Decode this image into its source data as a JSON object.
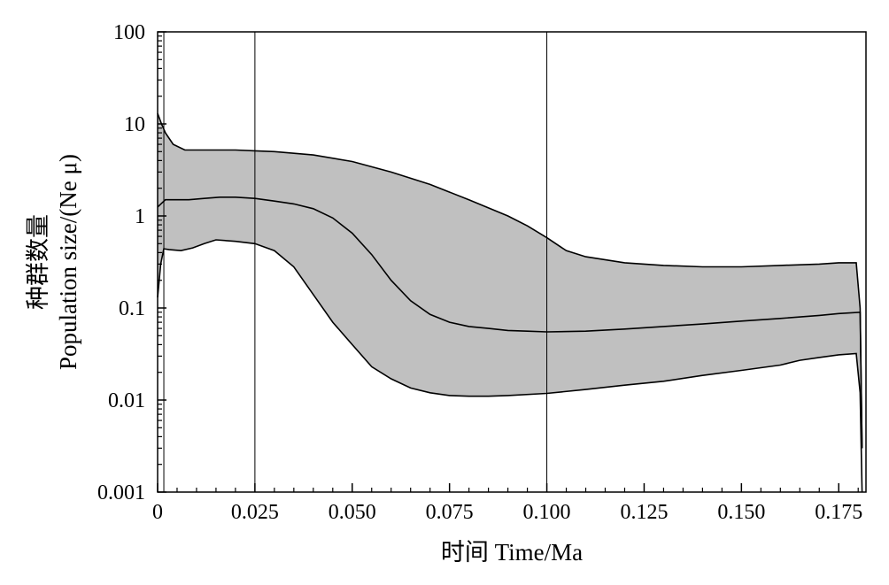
{
  "chart_data": {
    "type": "area",
    "xlabel": "时间 Time/Ma",
    "ylabel_cn": "种群数量",
    "ylabel_en": "Population size/(Ne μ)",
    "y_scale": "log",
    "xlim": [
      0,
      0.182
    ],
    "ylim": [
      0.001,
      100
    ],
    "x_ticks": [
      0,
      0.025,
      0.05,
      0.075,
      0.1,
      0.125,
      0.15,
      0.175
    ],
    "x_tick_labels": [
      "0",
      "0.025",
      "0.050",
      "0.075",
      "0.100",
      "0.125",
      "0.150",
      "0.175"
    ],
    "y_ticks": [
      0.001,
      0.01,
      0.1,
      1,
      10,
      100
    ],
    "y_tick_labels": [
      "0.001",
      "0.01",
      "0.1",
      "1",
      "10",
      "100"
    ],
    "vertical_lines": [
      0.0016,
      0.025,
      0.1
    ],
    "band_color": "#c0c0c0",
    "line_color": "#000000",
    "series": [
      {
        "role": "upper",
        "x": [
          0,
          0.001,
          0.002,
          0.004,
          0.007,
          0.01,
          0.015,
          0.02,
          0.025,
          0.03,
          0.04,
          0.05,
          0.06,
          0.07,
          0.08,
          0.09,
          0.095,
          0.1,
          0.105,
          0.11,
          0.12,
          0.13,
          0.14,
          0.15,
          0.16,
          0.17,
          0.175,
          0.1795,
          0.1805,
          0.181
        ],
        "y": [
          13,
          10,
          8,
          6,
          5.2,
          5.2,
          5.2,
          5.2,
          5.1,
          5.0,
          4.6,
          3.9,
          3.0,
          2.2,
          1.5,
          1.0,
          0.78,
          0.58,
          0.42,
          0.36,
          0.31,
          0.29,
          0.28,
          0.28,
          0.29,
          0.3,
          0.31,
          0.31,
          0.1,
          0.003
        ]
      },
      {
        "role": "median",
        "x": [
          0,
          0.002,
          0.005,
          0.008,
          0.012,
          0.016,
          0.02,
          0.025,
          0.03,
          0.035,
          0.04,
          0.045,
          0.05,
          0.055,
          0.06,
          0.065,
          0.07,
          0.075,
          0.08,
          0.085,
          0.09,
          0.095,
          0.1,
          0.11,
          0.12,
          0.13,
          0.14,
          0.15,
          0.16,
          0.17,
          0.175,
          0.1805,
          0.181
        ],
        "y": [
          1.25,
          1.5,
          1.5,
          1.5,
          1.55,
          1.6,
          1.6,
          1.55,
          1.45,
          1.35,
          1.2,
          0.95,
          0.65,
          0.38,
          0.2,
          0.12,
          0.085,
          0.07,
          0.063,
          0.06,
          0.057,
          0.056,
          0.055,
          0.056,
          0.059,
          0.063,
          0.067,
          0.072,
          0.077,
          0.083,
          0.087,
          0.09,
          0.003
        ]
      },
      {
        "role": "lower",
        "x": [
          0,
          0.0008,
          0.0016,
          0.003,
          0.006,
          0.009,
          0.012,
          0.015,
          0.02,
          0.025,
          0.03,
          0.035,
          0.04,
          0.045,
          0.05,
          0.055,
          0.06,
          0.065,
          0.07,
          0.075,
          0.08,
          0.085,
          0.09,
          0.1,
          0.11,
          0.12,
          0.13,
          0.14,
          0.15,
          0.16,
          0.165,
          0.17,
          0.175,
          0.1795,
          0.1805,
          0.181
        ],
        "y": [
          0.13,
          0.3,
          0.44,
          0.43,
          0.42,
          0.45,
          0.5,
          0.55,
          0.53,
          0.5,
          0.42,
          0.28,
          0.14,
          0.07,
          0.04,
          0.023,
          0.017,
          0.0135,
          0.012,
          0.0112,
          0.011,
          0.011,
          0.0112,
          0.0118,
          0.013,
          0.0145,
          0.016,
          0.0185,
          0.021,
          0.024,
          0.027,
          0.029,
          0.031,
          0.032,
          0.012,
          0.001
        ]
      }
    ]
  }
}
